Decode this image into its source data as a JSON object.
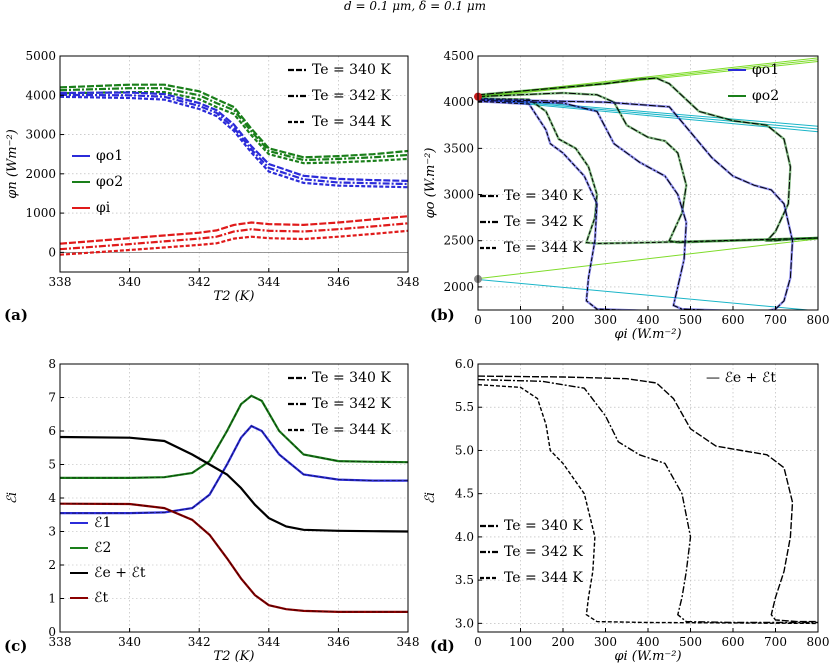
{
  "title": "d = 0.1 μm, δ = 0.1 μm",
  "chart_data": [
    {
      "panel": "(a)",
      "type": "line",
      "xlabel": "T2 (K)",
      "ylabel": "φn (Wm⁻²)",
      "xlim": [
        338,
        348
      ],
      "ylim": [
        -500,
        5000
      ],
      "xticks": [
        338,
        340,
        342,
        344,
        346,
        348
      ],
      "yticks": [
        0,
        1000,
        2000,
        3000,
        4000,
        5000
      ],
      "legend_styles": [
        "Te = 340 K",
        "Te = 342 K",
        "Te = 344 K"
      ],
      "legend_series": [
        "φo1",
        "φo2",
        "φi"
      ],
      "series": [
        {
          "name": "φo2",
          "color": "#1a7f1a",
          "Te": 340,
          "x": [
            338,
            340,
            341,
            342,
            342.5,
            343,
            343.5,
            344,
            345,
            346,
            347,
            348
          ],
          "y": [
            4200,
            4270,
            4270,
            4100,
            3900,
            3700,
            3150,
            2650,
            2420,
            2450,
            2500,
            2580
          ]
        },
        {
          "name": "φo2",
          "color": "#1a7f1a",
          "Te": 342,
          "x": [
            338,
            340,
            341,
            342,
            342.5,
            343,
            343.5,
            344,
            345,
            346,
            347,
            348
          ],
          "y": [
            4130,
            4180,
            4180,
            4000,
            3800,
            3620,
            3080,
            2580,
            2350,
            2380,
            2420,
            2480
          ]
        },
        {
          "name": "φo2",
          "color": "#1a7f1a",
          "Te": 344,
          "x": [
            338,
            340,
            341,
            342,
            342.5,
            343,
            343.5,
            344,
            345,
            346,
            347,
            348
          ],
          "y": [
            4050,
            4080,
            4080,
            3900,
            3700,
            3520,
            2980,
            2500,
            2270,
            2290,
            2330,
            2380
          ]
        },
        {
          "name": "φo1",
          "color": "#2b2bd9",
          "Te": 340,
          "x": [
            338,
            340,
            341,
            342,
            342.5,
            343,
            343.5,
            344,
            345,
            346,
            347,
            348
          ],
          "y": [
            4060,
            4070,
            4030,
            3800,
            3620,
            3250,
            2700,
            2250,
            1950,
            1870,
            1840,
            1820
          ]
        },
        {
          "name": "φo1",
          "color": "#2b2bd9",
          "Te": 342,
          "x": [
            338,
            340,
            341,
            342,
            342.5,
            343,
            343.5,
            344,
            345,
            346,
            347,
            348
          ],
          "y": [
            4010,
            4000,
            3960,
            3730,
            3550,
            3170,
            2620,
            2150,
            1860,
            1780,
            1760,
            1740
          ]
        },
        {
          "name": "φo1",
          "color": "#2b2bd9",
          "Te": 344,
          "x": [
            338,
            340,
            341,
            342,
            342.5,
            343,
            343.5,
            344,
            345,
            346,
            347,
            348
          ],
          "y": [
            3960,
            3930,
            3890,
            3650,
            3470,
            3090,
            2540,
            2060,
            1770,
            1700,
            1680,
            1660
          ]
        },
        {
          "name": "φi",
          "color": "#e01a1a",
          "Te": 340,
          "x": [
            338,
            340,
            342,
            342.5,
            343,
            343.5,
            344,
            345,
            346,
            347,
            348
          ],
          "y": [
            220,
            360,
            500,
            560,
            700,
            760,
            720,
            700,
            760,
            840,
            920
          ]
        },
        {
          "name": "φi",
          "color": "#e01a1a",
          "Te": 342,
          "x": [
            338,
            340,
            342,
            342.5,
            343,
            343.5,
            344,
            345,
            346,
            347,
            348
          ],
          "y": [
            80,
            210,
            350,
            400,
            530,
            590,
            550,
            530,
            590,
            660,
            740
          ]
        },
        {
          "name": "φi",
          "color": "#e01a1a",
          "Te": 344,
          "x": [
            338,
            340,
            342,
            342.5,
            343,
            343.5,
            344,
            345,
            346,
            347,
            348
          ],
          "y": [
            -60,
            60,
            190,
            230,
            350,
            400,
            360,
            340,
            400,
            470,
            550
          ]
        }
      ]
    },
    {
      "panel": "(b)",
      "type": "line",
      "xlabel": "φi (W.m⁻²)",
      "ylabel": "φo (W.m⁻²)",
      "xlim": [
        0,
        800
      ],
      "ylim": [
        1750,
        4500
      ],
      "xticks": [
        0,
        100,
        200,
        300,
        400,
        500,
        600,
        700,
        800
      ],
      "yticks": [
        2000,
        2500,
        3000,
        3500,
        4000,
        4500
      ],
      "legend_styles": [
        "Te = 340 K",
        "Te = 342 K",
        "Te = 344 K"
      ],
      "legend_series": [
        "φo1",
        "φo2"
      ],
      "series": [
        {
          "name": "φo2",
          "color": "#1a7f1a",
          "Te": 340,
          "x": [
            0,
            300,
            380,
            420,
            450,
            520,
            600,
            680,
            720,
            735,
            730,
            700,
            680,
            700,
            750,
            800
          ],
          "y": [
            4080,
            4200,
            4250,
            4260,
            4200,
            3900,
            3800,
            3750,
            3600,
            3300,
            2900,
            2600,
            2500,
            2500,
            2520,
            2530
          ]
        },
        {
          "name": "φo2",
          "color": "#1a7f1a",
          "Te": 342,
          "x": [
            0,
            200,
            280,
            320,
            350,
            400,
            440,
            470,
            490,
            480,
            460,
            450,
            470,
            600,
            800
          ],
          "y": [
            4060,
            4100,
            4080,
            4000,
            3750,
            3620,
            3580,
            3450,
            3100,
            2800,
            2600,
            2500,
            2480,
            2500,
            2530
          ]
        },
        {
          "name": "φo2",
          "color": "#1a7f1a",
          "Te": 344,
          "x": [
            0,
            120,
            160,
            190,
            230,
            260,
            280,
            275,
            260,
            255,
            280,
            400,
            800
          ],
          "y": [
            4040,
            4030,
            3900,
            3600,
            3500,
            3300,
            3000,
            2750,
            2550,
            2480,
            2470,
            2480,
            2530
          ]
        },
        {
          "name": "φo1",
          "color": "#2b2bd9",
          "Te": 340,
          "x": [
            0,
            300,
            450,
            550,
            600,
            650,
            690,
            720,
            740,
            735,
            720,
            700,
            680,
            700,
            750,
            800
          ],
          "y": [
            4030,
            4000,
            3950,
            3400,
            3200,
            3100,
            3050,
            2900,
            2500,
            2100,
            1850,
            1760,
            1740,
            1735,
            1730,
            1730
          ]
        },
        {
          "name": "φo1",
          "color": "#2b2bd9",
          "Te": 342,
          "x": [
            0,
            200,
            280,
            320,
            380,
            440,
            470,
            490,
            485,
            470,
            460,
            480,
            600,
            800
          ],
          "y": [
            4020,
            3990,
            3900,
            3550,
            3350,
            3200,
            3000,
            2700,
            2300,
            2000,
            1800,
            1760,
            1740,
            1730
          ]
        },
        {
          "name": "φo1",
          "color": "#2b2bd9",
          "Te": 344,
          "x": [
            0,
            120,
            160,
            170,
            200,
            250,
            280,
            275,
            260,
            255,
            280,
            400,
            800
          ],
          "y": [
            4010,
            3980,
            3700,
            3550,
            3450,
            3200,
            2900,
            2500,
            2100,
            1850,
            1760,
            1740,
            1730
          ]
        }
      ]
    },
    {
      "panel": "(c)",
      "type": "line",
      "xlabel": "T2 (K)",
      "ylabel": "ℰi",
      "xlim": [
        338,
        348
      ],
      "ylim": [
        0,
        8
      ],
      "xticks": [
        338,
        340,
        342,
        344,
        346,
        348
      ],
      "yticks": [
        0,
        1,
        2,
        3,
        4,
        5,
        6,
        7,
        8
      ],
      "legend_styles": [
        "Te = 340 K",
        "Te = 342 K",
        "Te = 344 K"
      ],
      "legend_series": [
        "ℰ1",
        "ℰ2",
        "ℰe + ℰt",
        "ℰt"
      ],
      "series": [
        {
          "name": "ℰ2",
          "color": "#1a7f1a",
          "x": [
            338,
            340,
            341,
            341.8,
            342.3,
            342.8,
            343.2,
            343.5,
            343.8,
            344.3,
            345,
            346,
            347,
            348
          ],
          "y": [
            4.6,
            4.6,
            4.62,
            4.75,
            5.1,
            6.0,
            6.8,
            7.05,
            6.9,
            6.0,
            5.3,
            5.1,
            5.08,
            5.07
          ]
        },
        {
          "name": "ℰ1",
          "color": "#2b2bd9",
          "x": [
            338,
            340,
            341,
            341.8,
            342.3,
            342.8,
            343.2,
            343.5,
            343.8,
            344.3,
            345,
            346,
            347,
            348
          ],
          "y": [
            3.55,
            3.55,
            3.57,
            3.7,
            4.1,
            5.0,
            5.8,
            6.15,
            6.0,
            5.3,
            4.7,
            4.55,
            4.52,
            4.52
          ]
        },
        {
          "name": "ℰe + ℰt",
          "color": "#000000",
          "x": [
            338,
            340,
            341,
            341.8,
            342.3,
            342.8,
            343.2,
            343.6,
            344,
            344.5,
            345,
            346,
            347,
            348
          ],
          "y": [
            5.82,
            5.8,
            5.7,
            5.3,
            5.0,
            4.7,
            4.3,
            3.8,
            3.4,
            3.15,
            3.05,
            3.02,
            3.01,
            3.0
          ]
        },
        {
          "name": "ℰt",
          "color": "#8b0000",
          "x": [
            338,
            340,
            341,
            341.8,
            342.3,
            342.8,
            343.2,
            343.6,
            344,
            344.5,
            345,
            346,
            347,
            348
          ],
          "y": [
            3.83,
            3.82,
            3.7,
            3.35,
            2.9,
            2.2,
            1.6,
            1.1,
            0.8,
            0.68,
            0.63,
            0.6,
            0.6,
            0.6
          ]
        }
      ]
    },
    {
      "panel": "(d)",
      "type": "line",
      "xlabel": "φi (W.m⁻²)",
      "ylabel": "ℰi",
      "xlim": [
        0,
        800
      ],
      "ylim": [
        2.9,
        6.0
      ],
      "xticks": [
        0,
        100,
        200,
        300,
        400,
        500,
        600,
        700,
        800
      ],
      "yticks": [
        3.0,
        3.5,
        4.0,
        4.5,
        5.0,
        5.5,
        6.0
      ],
      "legend_styles": [
        "Te = 340 K",
        "Te = 342 K",
        "Te = 344 K"
      ],
      "legend_top": "— ℰe + ℰt",
      "series": [
        {
          "name": "ℰe + ℰt",
          "color": "#000000",
          "Te": 340,
          "x": [
            0,
            200,
            350,
            420,
            460,
            500,
            560,
            620,
            680,
            720,
            740,
            735,
            720,
            700,
            690,
            700,
            750,
            800
          ],
          "y": [
            5.86,
            5.85,
            5.83,
            5.78,
            5.6,
            5.25,
            5.05,
            5.0,
            4.95,
            4.8,
            4.4,
            4.0,
            3.6,
            3.3,
            3.1,
            3.04,
            3.02,
            3.02
          ]
        },
        {
          "name": "ℰe + ℰt",
          "color": "#000000",
          "Te": 342,
          "x": [
            0,
            150,
            250,
            300,
            330,
            380,
            440,
            480,
            500,
            490,
            480,
            470,
            490,
            600,
            800
          ],
          "y": [
            5.82,
            5.8,
            5.72,
            5.4,
            5.1,
            4.95,
            4.85,
            4.5,
            4.0,
            3.6,
            3.3,
            3.1,
            3.02,
            3.01,
            3.01
          ]
        },
        {
          "name": "ℰe + ℰt",
          "color": "#000000",
          "Te": 344,
          "x": [
            0,
            100,
            140,
            160,
            170,
            200,
            250,
            275,
            270,
            260,
            255,
            280,
            400,
            800
          ],
          "y": [
            5.76,
            5.73,
            5.6,
            5.3,
            5.0,
            4.85,
            4.5,
            4.0,
            3.6,
            3.3,
            3.1,
            3.02,
            3.01,
            3.0
          ]
        }
      ]
    }
  ]
}
